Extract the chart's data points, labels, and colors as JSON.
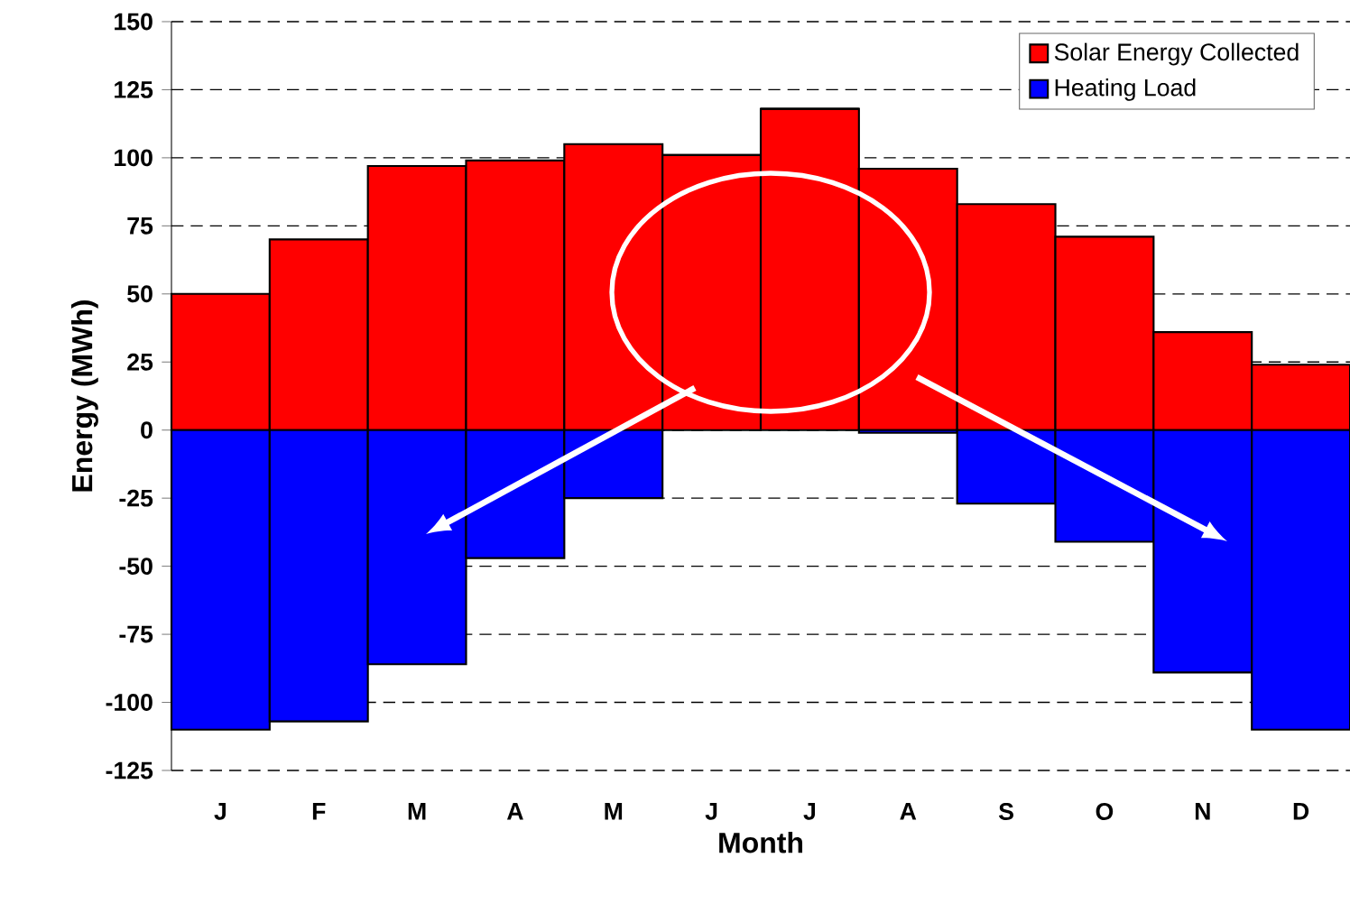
{
  "chart_data": {
    "type": "bar",
    "xlabel": "Month",
    "ylabel": "Energy (MWh)",
    "categories": [
      "J",
      "F",
      "M",
      "A",
      "M",
      "J",
      "J",
      "A",
      "S",
      "O",
      "N",
      "D"
    ],
    "series": [
      {
        "name": "Solar Energy Collected",
        "color": "#ff0000",
        "values": [
          50,
          70,
          97,
          99,
          105,
          101,
          118,
          96,
          83,
          71,
          36,
          24
        ]
      },
      {
        "name": "Heating Load",
        "color": "#0000ff",
        "values": [
          -110,
          -107,
          -86,
          -47,
          -25,
          0,
          0,
          -1,
          -27,
          -41,
          -89,
          -110
        ]
      }
    ],
    "ylim": [
      -125,
      150
    ],
    "yticks": [
      -125,
      -100,
      -75,
      -50,
      -25,
      0,
      25,
      50,
      75,
      100,
      125,
      150
    ],
    "stacked": true,
    "grid": "y",
    "legend": "top right"
  }
}
